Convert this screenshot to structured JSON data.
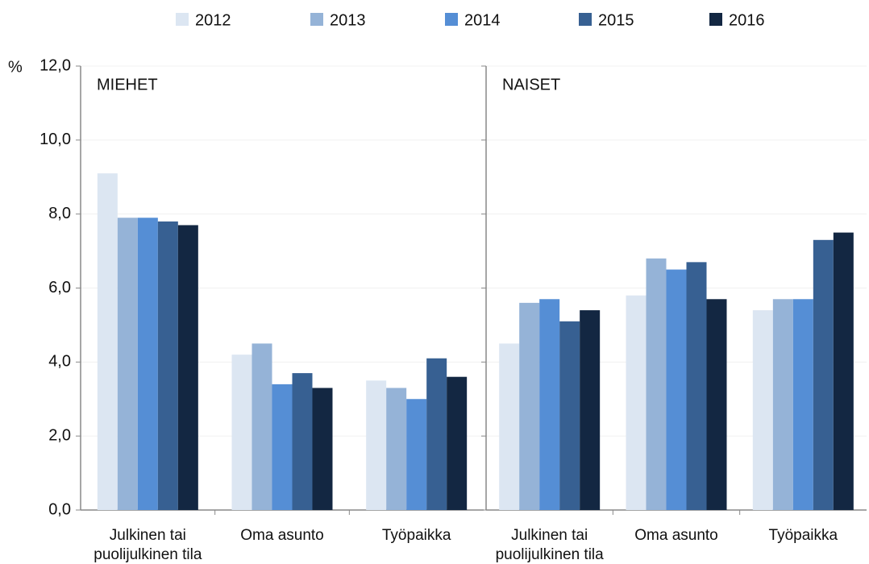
{
  "chart_data": {
    "type": "bar",
    "ylabel": "%",
    "ylim": [
      0,
      12
    ],
    "yticks": [
      {
        "value": 0,
        "label": "0,0"
      },
      {
        "value": 2,
        "label": "2,0"
      },
      {
        "value": 4,
        "label": "4,0"
      },
      {
        "value": 6,
        "label": "6,0"
      },
      {
        "value": 8,
        "label": "8,0"
      },
      {
        "value": 10,
        "label": "10,0"
      },
      {
        "value": 12,
        "label": "12,0"
      }
    ],
    "grid": true,
    "categories": [
      "Julkinen tai puolijulkinen tila",
      "Oma asunto",
      "Työpaikka"
    ],
    "series": [
      {
        "name": "2012",
        "color": "#dce6f2"
      },
      {
        "name": "2013",
        "color": "#95b3d7"
      },
      {
        "name": "2014",
        "color": "#558ed5"
      },
      {
        "name": "2015",
        "color": "#376092"
      },
      {
        "name": "2016",
        "color": "#132742"
      }
    ],
    "panels": [
      {
        "title": "MIEHET",
        "values": [
          [
            9.1,
            4.2,
            3.5
          ],
          [
            7.9,
            4.5,
            3.3
          ],
          [
            7.9,
            3.4,
            3.0
          ],
          [
            7.8,
            3.7,
            4.1
          ],
          [
            7.7,
            3.3,
            3.6
          ]
        ]
      },
      {
        "title": "NAISET",
        "values": [
          [
            4.5,
            5.8,
            5.4
          ],
          [
            5.6,
            6.8,
            5.7
          ],
          [
            5.7,
            6.5,
            5.7
          ],
          [
            5.1,
            6.7,
            7.3
          ],
          [
            5.4,
            5.7,
            7.5
          ]
        ]
      }
    ]
  }
}
